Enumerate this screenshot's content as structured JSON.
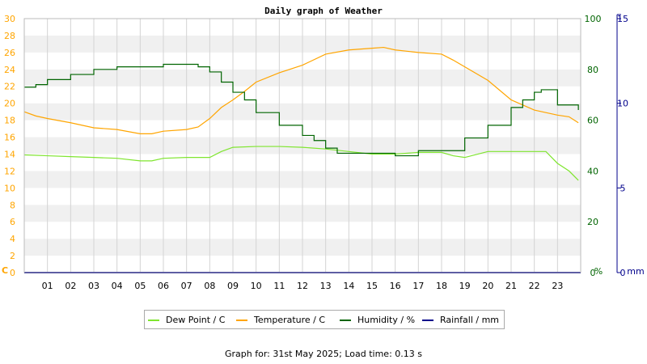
{
  "chart_data": {
    "type": "line",
    "title": "Daily graph of Weather",
    "x_ticks": [
      "01",
      "02",
      "03",
      "04",
      "05",
      "06",
      "07",
      "08",
      "09",
      "10",
      "11",
      "12",
      "13",
      "14",
      "15",
      "16",
      "17",
      "18",
      "19",
      "20",
      "21",
      "22",
      "23"
    ],
    "xlim": [
      0,
      24
    ],
    "left_axis": {
      "unit": "C",
      "ylim": [
        0,
        30
      ],
      "ticks": [
        0,
        2,
        4,
        6,
        8,
        10,
        12,
        14,
        16,
        18,
        20,
        22,
        24,
        26,
        28,
        30
      ],
      "color": "#ffa500"
    },
    "right_axis_1": {
      "unit": "%",
      "ylim": [
        0,
        100
      ],
      "ticks": [
        0,
        20,
        40,
        60,
        80,
        100
      ],
      "color": "#006400"
    },
    "right_axis_2": {
      "unit": "mm",
      "ylim": [
        0,
        15
      ],
      "ticks": [
        0,
        5,
        10,
        15
      ],
      "color": "#00008b"
    },
    "series": [
      {
        "name": "Dew Point / C",
        "axis": "left",
        "color": "#7fe52f",
        "x": [
          0,
          1,
          2,
          3,
          4,
          5,
          5.5,
          6,
          7,
          8,
          8.5,
          9,
          10,
          11,
          12,
          13,
          14,
          15,
          16,
          17,
          18,
          18.5,
          19,
          20,
          21,
          22,
          22.5,
          23,
          23.5,
          23.9
        ],
        "y": [
          13.9,
          13.8,
          13.7,
          13.6,
          13.5,
          13.2,
          13.2,
          13.5,
          13.6,
          13.6,
          14.3,
          14.8,
          14.9,
          14.9,
          14.8,
          14.6,
          14.3,
          14.0,
          14.0,
          14.2,
          14.2,
          13.8,
          13.6,
          14.3,
          14.3,
          14.3,
          14.3,
          12.9,
          12.0,
          10.9
        ]
      },
      {
        "name": "Temperature / C",
        "axis": "left",
        "color": "#ffa500",
        "x": [
          0,
          0.5,
          1,
          2,
          3,
          4,
          5,
          5.5,
          6,
          7,
          7.5,
          8,
          8.5,
          9,
          9.5,
          10,
          11,
          12,
          13,
          14,
          15,
          15.5,
          16,
          17,
          18,
          18.5,
          19,
          20,
          21,
          22,
          23,
          23.5,
          23.9
        ],
        "y": [
          19.0,
          18.5,
          18.2,
          17.7,
          17.1,
          16.9,
          16.4,
          16.4,
          16.7,
          16.9,
          17.2,
          18.2,
          19.5,
          20.4,
          21.4,
          22.5,
          23.6,
          24.5,
          25.8,
          26.3,
          26.5,
          26.6,
          26.3,
          26.0,
          25.8,
          25.1,
          24.3,
          22.7,
          20.4,
          19.2,
          18.6,
          18.4,
          17.7
        ]
      },
      {
        "name": "Humidity / %",
        "axis": "right1",
        "color": "#006400",
        "x": [
          0,
          0.5,
          1,
          2,
          3,
          4,
          5,
          6,
          7,
          7.5,
          8,
          8.5,
          9,
          9.5,
          10,
          11,
          12,
          12.5,
          13,
          13.5,
          14,
          15,
          16,
          16.5,
          17,
          18,
          18.5,
          19,
          20,
          21,
          21.5,
          22,
          22.3,
          22.5,
          23,
          23.9
        ],
        "y": [
          73,
          74,
          76,
          78,
          80,
          81,
          81,
          82,
          82,
          81,
          79,
          75,
          71,
          68,
          63,
          58,
          54,
          52,
          49,
          47,
          47,
          47,
          46,
          46,
          48,
          48,
          48,
          53,
          58,
          65,
          68,
          71,
          72,
          72,
          66,
          64
        ]
      },
      {
        "name": "Rainfall / mm",
        "axis": "right2",
        "color": "#00008b",
        "x": [
          0,
          24
        ],
        "y": [
          0,
          0
        ]
      }
    ],
    "legend_position": "bottom-center",
    "grid": true
  },
  "footer_text": "Graph for: 31st May 2025; Load time: 0.13 s"
}
